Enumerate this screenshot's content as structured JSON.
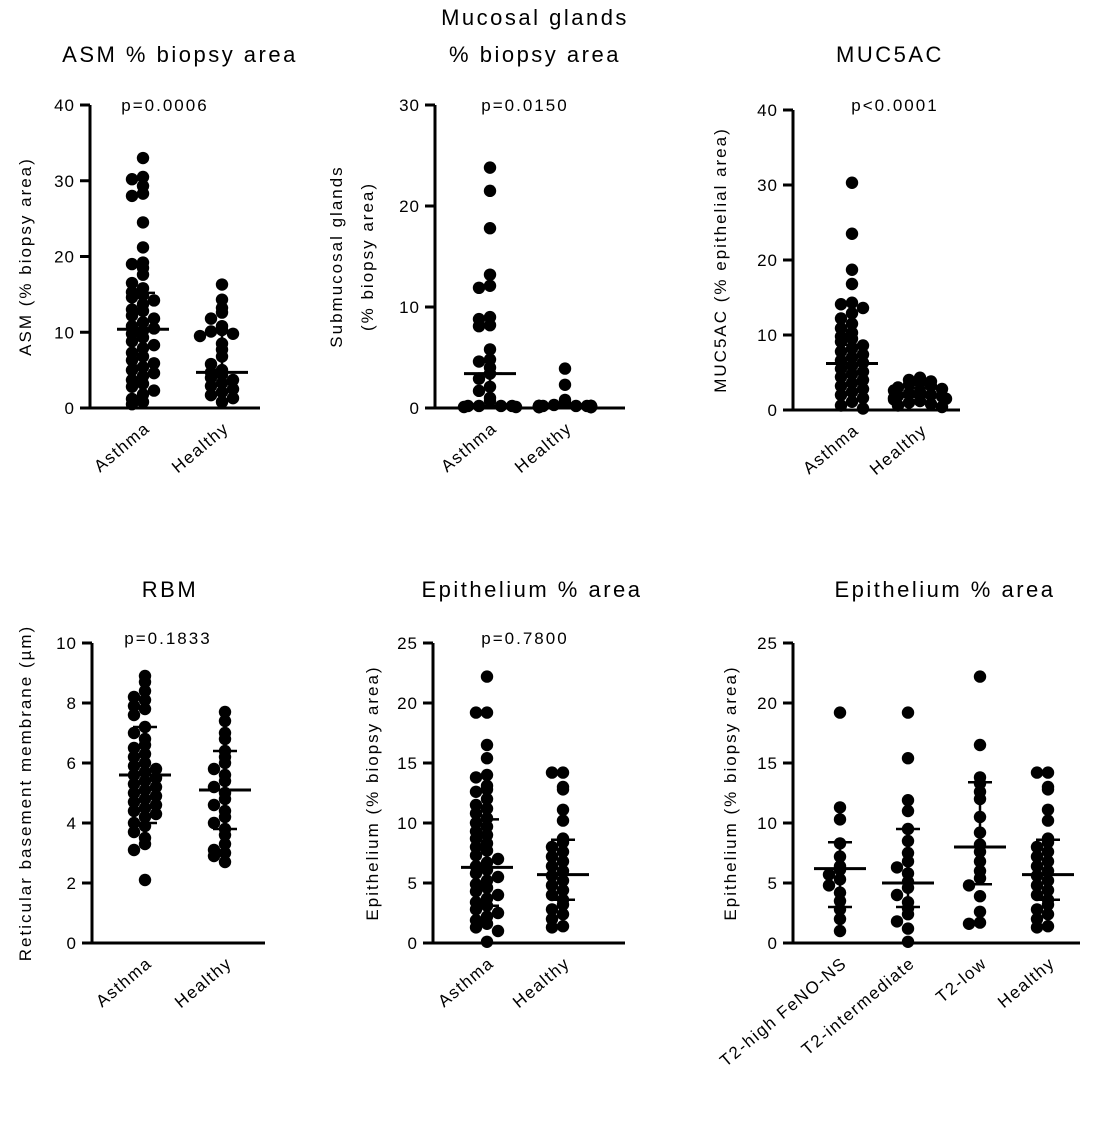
{
  "chart_data": [
    {
      "type": "scatter",
      "title": "ASM % biopsy area",
      "pvalue": "p=0.0006",
      "ylabel": "ASM (% biopsy area)",
      "ylim": [
        0,
        40
      ],
      "yticks": [
        "0",
        "10",
        "20",
        "30",
        "40"
      ],
      "categories": [
        "Asthma",
        "Healthy"
      ],
      "series": [
        {
          "values": [
            33.0,
            30.5,
            30.2,
            29.3,
            28.3,
            28.0,
            24.5,
            21.2,
            19.2,
            19.0,
            18.5,
            17.6,
            16.5,
            15.8,
            15.3,
            14.9,
            14.6,
            14.2,
            13.7,
            13.0,
            12.8,
            12.2,
            11.8,
            11.3,
            10.8,
            10.5,
            10.2,
            9.8,
            9.3,
            8.8,
            8.3,
            7.9,
            7.3,
            6.8,
            6.3,
            5.9,
            5.4,
            5.0,
            4.6,
            4.2,
            3.7,
            3.2,
            2.8,
            2.3,
            1.8,
            1.2,
            0.8,
            0.5
          ],
          "center": 10.4,
          "error_low": 5.6,
          "error_high": 15.2
        },
        {
          "values": [
            16.3,
            14.3,
            13.2,
            12.6,
            11.8,
            10.8,
            10.3,
            10.1,
            9.8,
            9.5,
            8.5,
            7.7,
            6.8,
            5.8,
            5.0,
            4.7,
            4.4,
            4.0,
            3.7,
            3.3,
            2.9,
            2.5,
            2.1,
            1.7,
            1.3,
            0.8
          ],
          "center": 4.7,
          "error_low": 3.2,
          "error_high": 10.2
        }
      ]
    },
    {
      "type": "scatter",
      "title": "Mucosal glands",
      "subtitle": "% biopsy area",
      "pvalue": "p=0.0150",
      "ylabel": "Submucosal glands",
      "ylabel2": "(% biopsy area)",
      "ylim": [
        0,
        30
      ],
      "yticks": [
        "0",
        "10",
        "20",
        "30"
      ],
      "categories": [
        "Asthma",
        "Healthy"
      ],
      "series": [
        {
          "values": [
            23.8,
            21.5,
            17.8,
            13.2,
            12.1,
            11.9,
            9.0,
            8.8,
            8.2,
            8.1,
            5.8,
            4.8,
            4.6,
            4.0,
            3.4,
            2.9,
            2.1,
            1.7,
            1.0,
            0.7,
            0.2,
            0.2,
            0.2,
            0.2,
            0.1,
            0.1
          ],
          "center": 3.4,
          "error_low": 0.2,
          "error_high": 3.4
        },
        {
          "values": [
            3.9,
            2.3,
            0.8,
            0.5,
            0.3,
            0.2,
            0.2,
            0.2,
            0.2,
            0.2,
            0.2,
            0.2,
            0.2,
            0.2,
            0.2,
            0.2,
            0.1,
            0.1,
            0.1,
            0.1,
            0.1,
            0.1,
            0.1,
            0.1,
            0.1,
            0.1
          ],
          "center": 0.2,
          "error_low": 0.1,
          "error_high": 0.3
        }
      ]
    },
    {
      "type": "scatter",
      "title": "MUC5AC",
      "pvalue": "p<0.0001",
      "ylabel": "MUC5AC (% epithelial area)",
      "ylim": [
        0,
        40
      ],
      "yticks": [
        "0",
        "10",
        "20",
        "30",
        "40"
      ],
      "categories": [
        "Asthma",
        "Healthy"
      ],
      "series": [
        {
          "values": [
            30.3,
            23.5,
            18.7,
            16.8,
            14.3,
            14.1,
            13.6,
            12.9,
            12.2,
            11.5,
            10.9,
            10.3,
            9.8,
            9.5,
            9.1,
            8.6,
            8.2,
            7.8,
            7.4,
            7.0,
            6.6,
            6.3,
            5.9,
            5.5,
            5.1,
            4.8,
            4.4,
            4.0,
            3.6,
            3.2,
            2.8,
            2.4,
            2.0,
            1.6,
            1.1,
            0.6,
            0.2
          ],
          "center": 6.2,
          "error_low": 3.5,
          "error_high": 8.7
        },
        {
          "values": [
            4.3,
            4.0,
            3.8,
            3.6,
            3.4,
            3.2,
            3.0,
            2.8,
            2.6,
            2.4,
            2.2,
            2.0,
            1.9,
            1.8,
            1.6,
            1.5,
            1.4,
            1.2,
            1.0,
            0.8,
            0.6,
            0.4
          ],
          "center": 1.8,
          "error_low": 1.0,
          "error_high": 2.9
        }
      ]
    },
    {
      "type": "scatter",
      "title": "RBM",
      "pvalue": "p=0.1833",
      "ylabel": "Reticular basement membrane (µm)",
      "ylim": [
        0,
        10
      ],
      "yticks": [
        "0",
        "2",
        "4",
        "6",
        "8",
        "10"
      ],
      "categories": [
        "Asthma",
        "Healthy"
      ],
      "series": [
        {
          "values": [
            8.9,
            8.7,
            8.4,
            8.2,
            8.1,
            7.9,
            7.8,
            7.6,
            7.2,
            7.0,
            6.8,
            6.6,
            6.5,
            6.3,
            6.2,
            6.0,
            5.9,
            5.8,
            5.7,
            5.6,
            5.5,
            5.4,
            5.3,
            5.2,
            5.1,
            5.0,
            4.9,
            4.8,
            4.7,
            4.6,
            4.5,
            4.4,
            4.3,
            4.2,
            4.0,
            3.9,
            3.7,
            3.5,
            3.3,
            3.1,
            2.1
          ],
          "center": 5.6,
          "error_low": 4.0,
          "error_high": 7.2
        },
        {
          "values": [
            7.7,
            7.4,
            7.0,
            6.8,
            6.4,
            6.2,
            6.0,
            5.8,
            5.6,
            5.4,
            5.2,
            5.0,
            4.8,
            4.6,
            4.4,
            4.2,
            4.0,
            3.8,
            3.6,
            3.3,
            3.1,
            3.0,
            2.9,
            2.7
          ],
          "center": 5.1,
          "error_low": 3.8,
          "error_high": 6.4
        }
      ]
    },
    {
      "type": "scatter",
      "title": "Epithelium % area",
      "pvalue": "p=0.7800",
      "ylabel": "Epithelium (% biopsy area)",
      "ylim": [
        0,
        25
      ],
      "yticks": [
        "0",
        "5",
        "10",
        "15",
        "20",
        "25"
      ],
      "categories": [
        "Asthma",
        "Healthy"
      ],
      "series": [
        {
          "values": [
            22.2,
            19.2,
            19.2,
            16.5,
            15.4,
            14.0,
            13.8,
            13.1,
            12.8,
            12.6,
            12.0,
            11.5,
            11.2,
            10.8,
            10.4,
            10.0,
            9.7,
            9.3,
            9.0,
            8.7,
            8.3,
            8.0,
            7.7,
            7.3,
            7.0,
            6.7,
            6.4,
            6.1,
            5.8,
            5.5,
            5.2,
            4.9,
            4.6,
            4.3,
            4.0,
            3.7,
            3.4,
            3.1,
            2.8,
            2.5,
            2.2,
            1.9,
            1.6,
            1.3,
            1.0,
            0.1
          ],
          "center": 6.3,
          "error_low": 3.1,
          "error_high": 10.3
        },
        {
          "values": [
            14.2,
            14.2,
            13.0,
            12.8,
            11.1,
            10.2,
            8.7,
            8.4,
            8.0,
            7.6,
            7.2,
            6.8,
            6.4,
            6.0,
            5.6,
            5.2,
            4.8,
            4.4,
            4.0,
            3.6,
            3.2,
            2.8,
            2.4,
            2.0,
            1.4,
            1.3
          ],
          "center": 5.7,
          "error_low": 3.6,
          "error_high": 8.6
        }
      ]
    },
    {
      "type": "scatter",
      "title": "Epithelium % area",
      "pvalue": "",
      "ylabel": "Epithelium (% biopsy area)",
      "ylim": [
        0,
        25
      ],
      "yticks": [
        "0",
        "5",
        "10",
        "15",
        "20",
        "25"
      ],
      "categories": [
        "T2-high FeNO-NS",
        "T2-intermediate",
        "T2-low",
        "Healthy"
      ],
      "series": [
        {
          "values": [
            19.2,
            11.3,
            10.3,
            8.3,
            7.2,
            6.4,
            6.1,
            5.7,
            5.3,
            4.8,
            4.2,
            3.5,
            2.8,
            2.0,
            1.0
          ],
          "center": 6.2,
          "error_low": 3.0,
          "error_high": 8.4
        },
        {
          "values": [
            19.2,
            15.4,
            11.9,
            11.0,
            9.5,
            8.5,
            7.5,
            6.8,
            6.3,
            5.8,
            5.1,
            4.6,
            4.0,
            3.4,
            2.9,
            2.4,
            1.8,
            1.2,
            0.1
          ],
          "center": 5.0,
          "error_low": 3.0,
          "error_high": 9.5
        },
        {
          "values": [
            22.2,
            16.5,
            13.8,
            13.3,
            12.6,
            12.0,
            10.5,
            9.2,
            8.2,
            7.6,
            6.8,
            6.0,
            5.4,
            4.8,
            3.9,
            2.6,
            1.7,
            1.6
          ],
          "center": 8.0,
          "error_low": 4.9,
          "error_high": 13.4
        },
        {
          "values": [
            14.2,
            14.2,
            13.0,
            12.8,
            11.1,
            10.2,
            8.7,
            8.4,
            8.0,
            7.6,
            7.2,
            6.8,
            6.4,
            6.0,
            5.6,
            5.2,
            4.8,
            4.4,
            4.0,
            3.6,
            3.2,
            2.8,
            2.4,
            2.0,
            1.4,
            1.3
          ],
          "center": 5.7,
          "error_low": 3.6,
          "error_high": 8.6
        }
      ]
    }
  ]
}
